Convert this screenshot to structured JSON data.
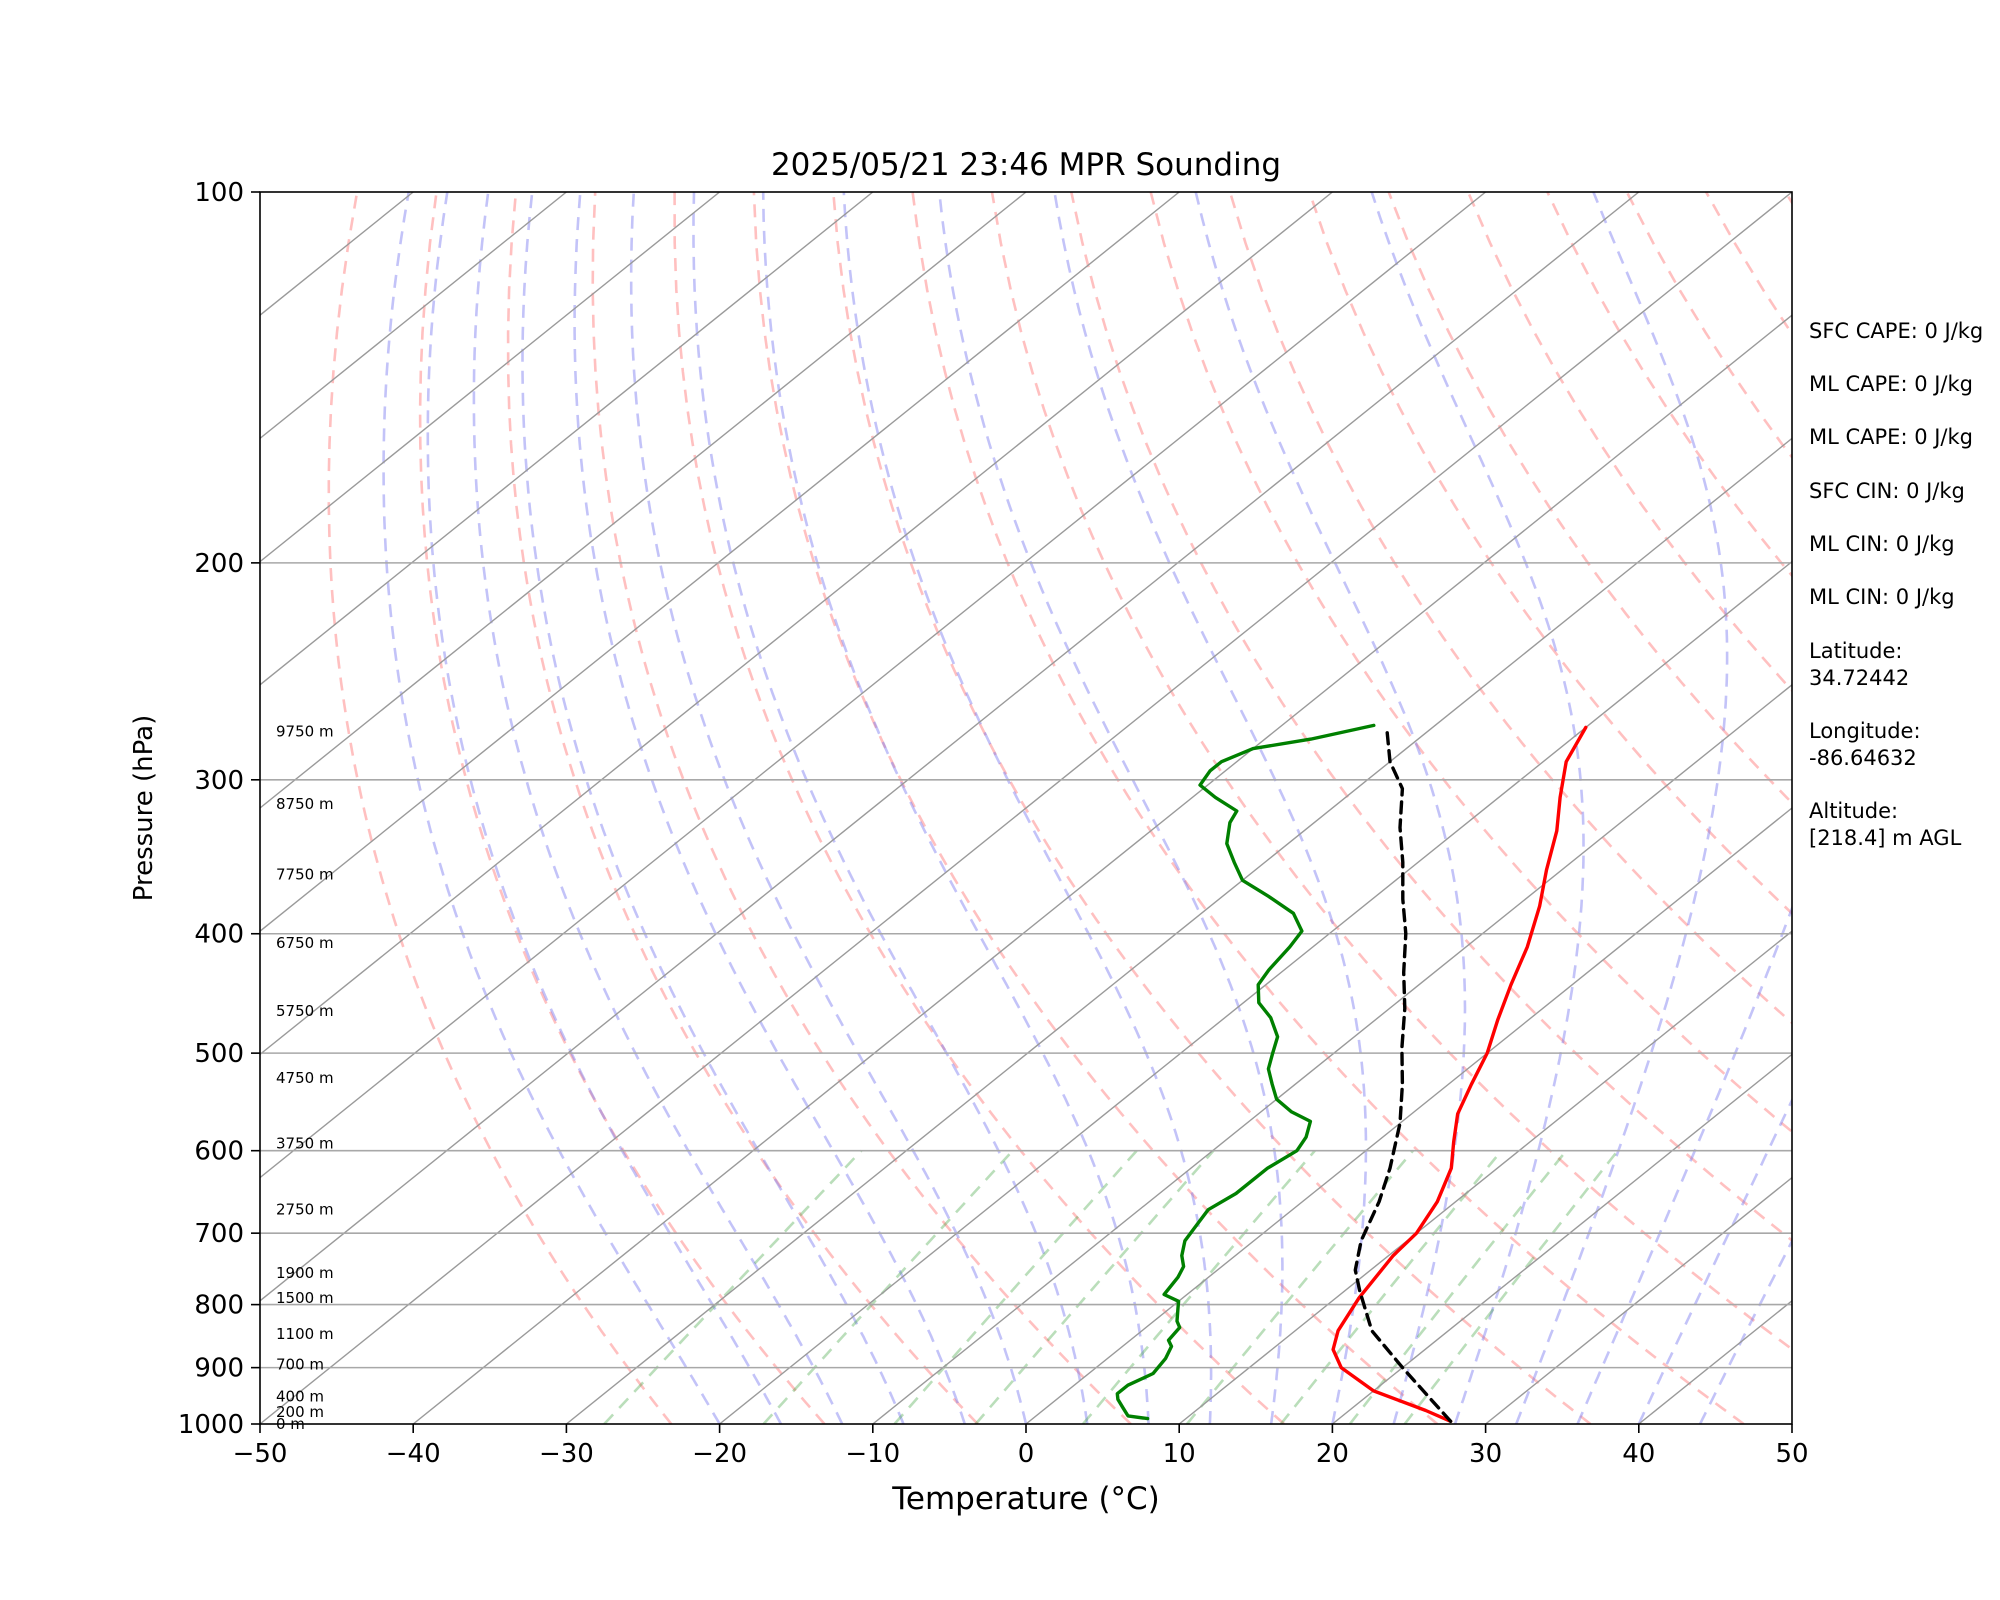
{
  "chart_data": {
    "type": "line",
    "title": "2025/05/21 23:46 MPR Sounding",
    "xlabel": "Temperature (°C)",
    "ylabel": "Pressure (hPa)",
    "xlim": [
      -50,
      50
    ],
    "ylim": [
      1000,
      100
    ],
    "y_scale": "log",
    "x_ticks": [
      "−50",
      "−40",
      "−30",
      "−20",
      "−10",
      "0",
      "10",
      "20",
      "30",
      "40",
      "50"
    ],
    "y_ticks": [
      "100",
      "200",
      "300",
      "400",
      "500",
      "600",
      "700",
      "800",
      "900",
      "1000"
    ],
    "height_labels": [
      "9750 m",
      "8750 m",
      "7750 m",
      "6750 m",
      "5750 m",
      "4750 m",
      "3750 m",
      "2750 m",
      "1900 m",
      "1500 m",
      "1100 m",
      "700 m",
      "400 m",
      "200 m",
      "0 m"
    ],
    "series": [
      {
        "color": "#ff0000",
        "points": [
          [
            27.5,
            995
          ],
          [
            25,
            975
          ],
          [
            20,
            940
          ],
          [
            16,
            900
          ],
          [
            14,
            870
          ],
          [
            12.8,
            840
          ],
          [
            11.5,
            790
          ],
          [
            10.3,
            730
          ],
          [
            10,
            700
          ],
          [
            8.8,
            660
          ],
          [
            7,
            620
          ],
          [
            5,
            590
          ],
          [
            3,
            560
          ],
          [
            1.5,
            530
          ],
          [
            0,
            500
          ],
          [
            -2,
            470
          ],
          [
            -4,
            440
          ],
          [
            -6,
            410
          ],
          [
            -8.5,
            380
          ],
          [
            -11,
            355
          ],
          [
            -13.5,
            330
          ],
          [
            -16,
            310
          ],
          [
            -18.5,
            290
          ],
          [
            -20,
            272
          ]
        ]
      },
      {
        "color": "#008000",
        "points": [
          [
            7.5,
            990
          ],
          [
            6,
            985
          ],
          [
            5,
            970
          ],
          [
            4,
            955
          ],
          [
            3.5,
            945
          ],
          [
            3.5,
            930
          ],
          [
            4.2,
            910
          ],
          [
            3.8,
            885
          ],
          [
            3.2,
            865
          ],
          [
            2.5,
            855
          ],
          [
            2.2,
            835
          ],
          [
            1.5,
            825
          ],
          [
            0.5,
            805
          ],
          [
            0,
            795
          ],
          [
            -1.5,
            785
          ],
          [
            -2,
            760
          ],
          [
            -2.5,
            745
          ],
          [
            -3.5,
            730
          ],
          [
            -4.5,
            710
          ],
          [
            -5,
            690
          ],
          [
            -5.5,
            670
          ],
          [
            -5,
            650
          ],
          [
            -5,
            620
          ],
          [
            -4.5,
            600
          ],
          [
            -5,
            585
          ],
          [
            -6,
            568
          ],
          [
            -8,
            558
          ],
          [
            -10,
            545
          ],
          [
            -11.5,
            530
          ],
          [
            -13,
            515
          ],
          [
            -14,
            500
          ],
          [
            -15,
            485
          ],
          [
            -17,
            468
          ],
          [
            -19,
            455
          ],
          [
            -20.5,
            440
          ],
          [
            -21,
            428
          ],
          [
            -21.5,
            410
          ],
          [
            -22,
            398
          ],
          [
            -24,
            385
          ],
          [
            -27,
            373
          ],
          [
            -30,
            362
          ],
          [
            -32,
            350
          ],
          [
            -34,
            338
          ],
          [
            -35.5,
            325
          ],
          [
            -36,
            318
          ],
          [
            -38.5,
            310
          ],
          [
            -40.5,
            303
          ],
          [
            -41,
            295
          ],
          [
            -41,
            290
          ],
          [
            -40,
            283
          ],
          [
            -37,
            278
          ],
          [
            -34,
            271
          ]
        ]
      },
      {
        "color": "#000000",
        "dashed": true,
        "points": [
          [
            27.5,
            995
          ],
          [
            20,
            900
          ],
          [
            15,
            840
          ],
          [
            11,
            780
          ],
          [
            9,
            750
          ],
          [
            7,
            710
          ],
          [
            5,
            660
          ],
          [
            3,
            620
          ],
          [
            0,
            570
          ],
          [
            -3,
            530
          ],
          [
            -6,
            495
          ],
          [
            -9,
            460
          ],
          [
            -12,
            430
          ],
          [
            -15,
            400
          ],
          [
            -18,
            375
          ],
          [
            -21,
            350
          ],
          [
            -24,
            328
          ],
          [
            -27,
            305
          ],
          [
            -30,
            290
          ],
          [
            -33,
            272
          ]
        ]
      }
    ]
  },
  "parameters": [
    "SFC CAPE: 0 J/kg",
    "ML CAPE: 0 J/kg",
    "ML CAPE: 0 J/kg",
    "SFC CIN: 0 J/kg",
    "ML CIN: 0 J/kg",
    "ML CIN: 0 J/kg"
  ],
  "location": {
    "latitude_label": "Latitude:",
    "latitude": "34.72442",
    "longitude_label": "Longitude:",
    "longitude": "-86.64632",
    "altitude_label": "Altitude:",
    "altitude": "[218.4] m AGL"
  }
}
